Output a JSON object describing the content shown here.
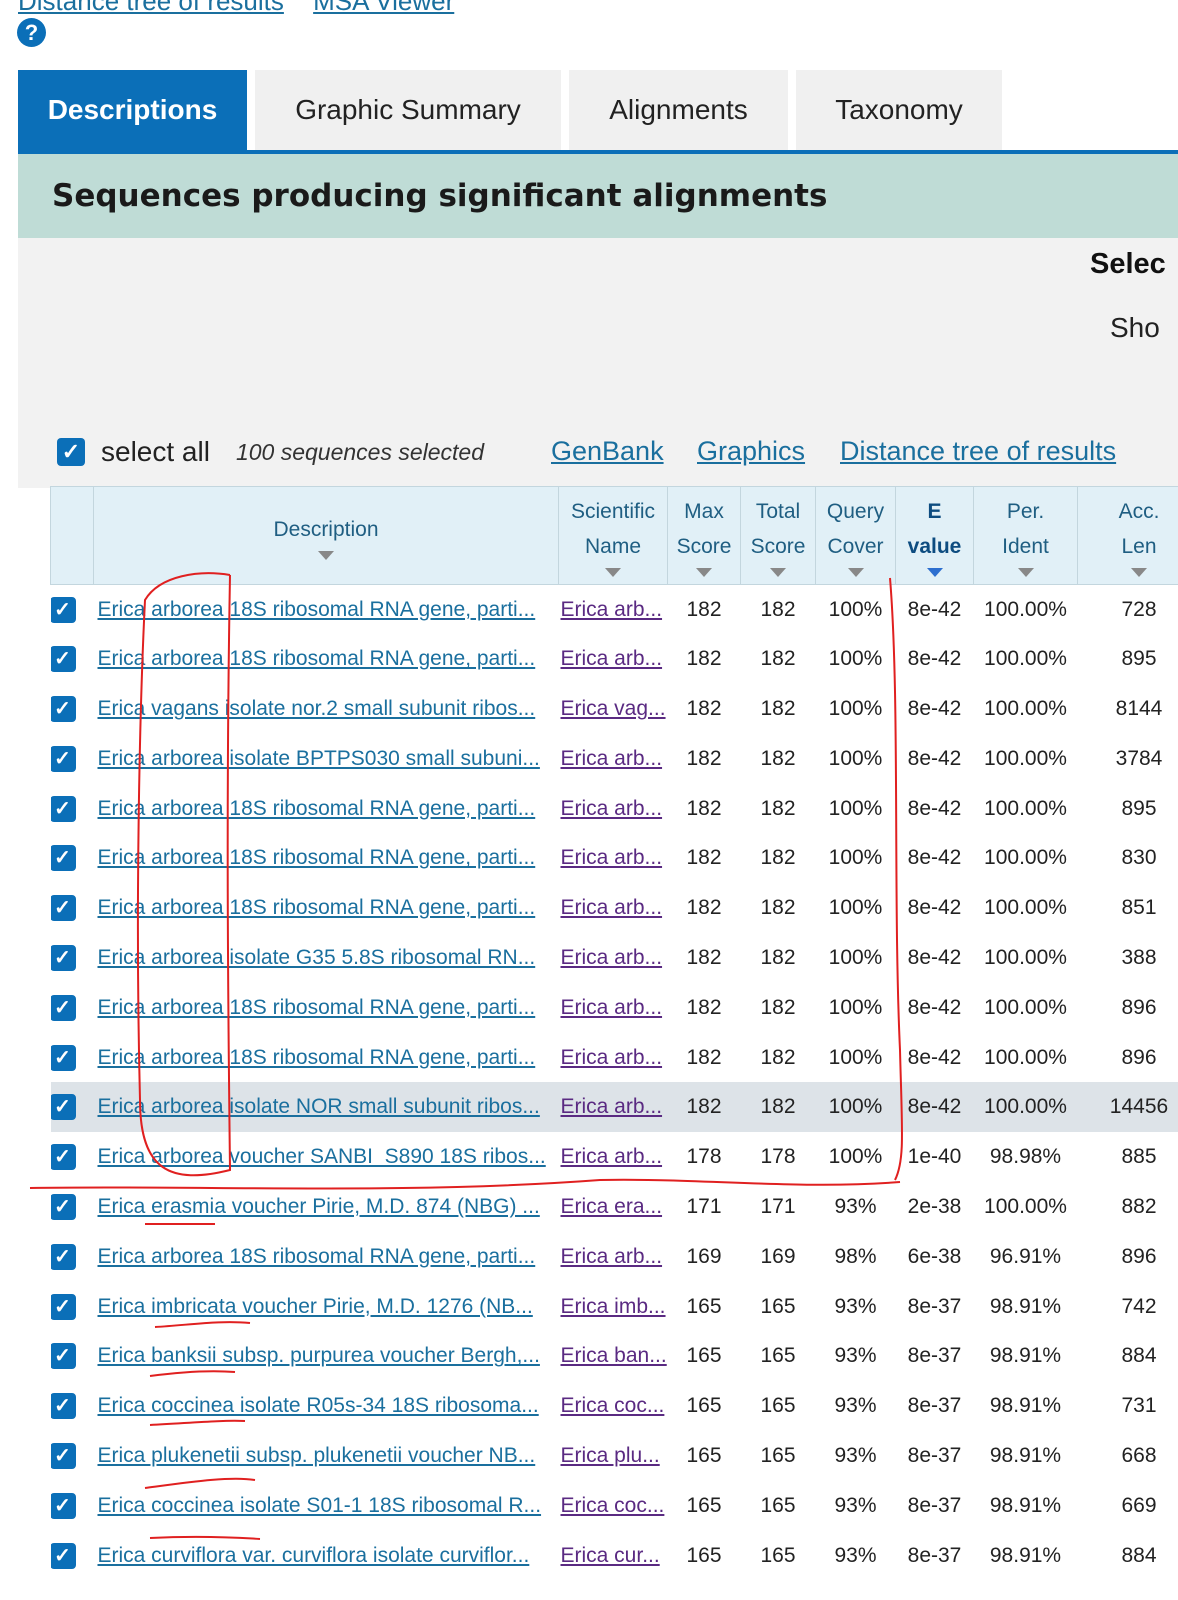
{
  "top_links": [
    "Distance tree of results",
    "MSA Viewer"
  ],
  "tabs": [
    "Descriptions",
    "Graphic Summary",
    "Alignments",
    "Taxonomy"
  ],
  "section_title": "Sequences producing significant alignments",
  "select_label": "Selec",
  "show_label": "Sho",
  "select_all": {
    "label": "select all",
    "count": "100 sequences selected",
    "checked": true
  },
  "toolbar_links": [
    "GenBank",
    "Graphics",
    "Distance tree of results"
  ],
  "columns": [
    {
      "l1": "",
      "l2": ""
    },
    {
      "l1": "Description",
      "l2": ""
    },
    {
      "l1": "Scientific",
      "l2": "Name"
    },
    {
      "l1": "Max",
      "l2": "Score"
    },
    {
      "l1": "Total",
      "l2": "Score"
    },
    {
      "l1": "Query",
      "l2": "Cover"
    },
    {
      "l1": "E",
      "l2": "value"
    },
    {
      "l1": "Per.",
      "l2": "Ident"
    },
    {
      "l1": "Acc.",
      "l2": "Len"
    }
  ],
  "sorted_column": "E value",
  "rows": [
    [
      "Erica arborea 18S ribosomal RNA gene, parti...",
      "Erica arb...",
      "182",
      "182",
      "100%",
      "8e-42",
      "100.00%",
      "728"
    ],
    [
      "Erica arborea 18S ribosomal RNA gene, parti...",
      "Erica arb...",
      "182",
      "182",
      "100%",
      "8e-42",
      "100.00%",
      "895"
    ],
    [
      "Erica vagans isolate nor.2 small subunit ribos...",
      "Erica vag...",
      "182",
      "182",
      "100%",
      "8e-42",
      "100.00%",
      "8144"
    ],
    [
      "Erica arborea isolate BPTPS030 small subuni...",
      "Erica arb...",
      "182",
      "182",
      "100%",
      "8e-42",
      "100.00%",
      "3784"
    ],
    [
      "Erica arborea 18S ribosomal RNA gene, parti...",
      "Erica arb...",
      "182",
      "182",
      "100%",
      "8e-42",
      "100.00%",
      "895"
    ],
    [
      "Erica arborea 18S ribosomal RNA gene, parti...",
      "Erica arb...",
      "182",
      "182",
      "100%",
      "8e-42",
      "100.00%",
      "830"
    ],
    [
      "Erica arborea 18S ribosomal RNA gene, parti...",
      "Erica arb...",
      "182",
      "182",
      "100%",
      "8e-42",
      "100.00%",
      "851"
    ],
    [
      "Erica arborea isolate G35 5.8S ribosomal RN...",
      "Erica arb...",
      "182",
      "182",
      "100%",
      "8e-42",
      "100.00%",
      "388"
    ],
    [
      "Erica arborea 18S ribosomal RNA gene, parti...",
      "Erica arb...",
      "182",
      "182",
      "100%",
      "8e-42",
      "100.00%",
      "896"
    ],
    [
      "Erica arborea 18S ribosomal RNA gene, parti...",
      "Erica arb...",
      "182",
      "182",
      "100%",
      "8e-42",
      "100.00%",
      "896"
    ],
    [
      "Erica arborea isolate NOR small subunit ribos...",
      "Erica arb...",
      "182",
      "182",
      "100%",
      "8e-42",
      "100.00%",
      "14456"
    ],
    [
      "Erica arborea voucher SANBI_S890 18S ribos...",
      "Erica arb...",
      "178",
      "178",
      "100%",
      "1e-40",
      "98.98%",
      "885"
    ],
    [
      "Erica erasmia voucher Pirie, M.D. 874 (NBG) ...",
      "Erica era...",
      "171",
      "171",
      "93%",
      "2e-38",
      "100.00%",
      "882"
    ],
    [
      "Erica arborea 18S ribosomal RNA gene, parti...",
      "Erica arb...",
      "169",
      "169",
      "98%",
      "6e-38",
      "96.91%",
      "896"
    ],
    [
      "Erica imbricata voucher Pirie, M.D. 1276 (NB...",
      "Erica imb...",
      "165",
      "165",
      "93%",
      "8e-37",
      "98.91%",
      "742"
    ],
    [
      "Erica banksii subsp. purpurea voucher Bergh,...",
      "Erica ban...",
      "165",
      "165",
      "93%",
      "8e-37",
      "98.91%",
      "884"
    ],
    [
      "Erica coccinea isolate R05s-34 18S ribosoma...",
      "Erica coc...",
      "165",
      "165",
      "93%",
      "8e-37",
      "98.91%",
      "731"
    ],
    [
      "Erica plukenetii subsp. plukenetii voucher NB...",
      "Erica plu...",
      "165",
      "165",
      "93%",
      "8e-37",
      "98.91%",
      "668"
    ],
    [
      "Erica coccinea isolate S01-1 18S ribosomal R...",
      "Erica coc...",
      "165",
      "165",
      "93%",
      "8e-37",
      "98.91%",
      "669"
    ],
    [
      "Erica curviflora var. curviflora isolate curviflor...",
      "Erica cur...",
      "165",
      "165",
      "93%",
      "8e-37",
      "98.91%",
      "884"
    ]
  ],
  "highlighted_row": 10,
  "colors": {
    "accent": "#0b6fb8",
    "section_bg": "#bfdcd6",
    "header_bg": "#e1f0f7",
    "annotation": "#e02020"
  }
}
